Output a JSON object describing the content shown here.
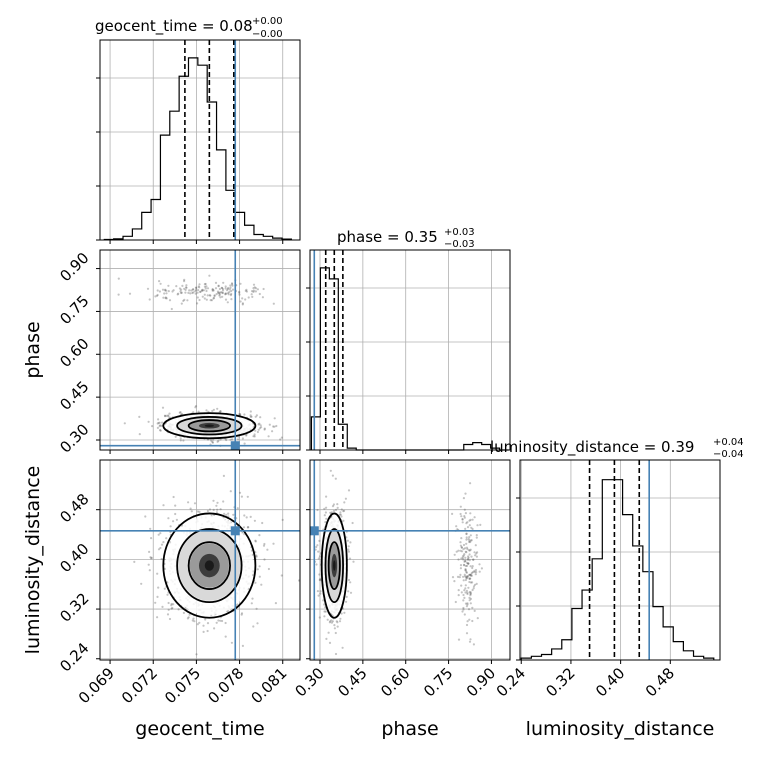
{
  "chart_data": {
    "type": "corner",
    "parameters": [
      "geocent_time",
      "phase",
      "luminosity_distance"
    ],
    "truth": {
      "geocent_time": 0.0777,
      "phase": 0.28,
      "luminosity_distance": 0.446
    },
    "colors": {
      "truth": "#4682b4",
      "hist": "#000000",
      "grid": "#b0b0b0",
      "points": "#555555"
    },
    "axes": {
      "geocent_time": {
        "range": [
          0.0683,
          0.0822
        ],
        "ticks": [
          "0.069",
          "0.072",
          "0.075",
          "0.078",
          "0.081"
        ],
        "tick_values": [
          0.069,
          0.072,
          0.075,
          0.078,
          0.081
        ]
      },
      "phase": {
        "range": [
          0.265,
          0.965
        ],
        "ticks": [
          "0.30",
          "0.45",
          "0.60",
          "0.75",
          "0.90"
        ],
        "tick_values": [
          0.3,
          0.45,
          0.6,
          0.75,
          0.9
        ]
      },
      "luminosity_distance": {
        "range": [
          0.238,
          0.56
        ],
        "ticks": [
          "0.24",
          "0.32",
          "0.40",
          "0.48"
        ],
        "tick_values": [
          0.24,
          0.32,
          0.4,
          0.48
        ]
      }
    },
    "titles": {
      "geocent_time": {
        "label": "geocent_time = 0.08",
        "plus": "+0.00",
        "minus": "−0.00"
      },
      "phase": {
        "label": "phase = 0.35",
        "plus": "+0.03",
        "minus": "−0.03"
      },
      "luminosity_distance": {
        "label": "luminosity_distance = 0.39",
        "plus": "+0.04",
        "minus": "−0.04"
      }
    },
    "quantiles": {
      "geocent_time": [
        0.0742,
        0.0759,
        0.0776
      ],
      "phase": [
        0.32,
        0.35,
        0.38
      ],
      "luminosity_distance": [
        0.35,
        0.39,
        0.43
      ]
    },
    "histograms": {
      "geocent_time": {
        "edges_range": [
          0.0686,
          0.0816
        ],
        "counts": [
          0.003,
          0.006,
          0.02,
          0.06,
          0.15,
          0.22,
          0.57,
          0.7,
          0.89,
          0.99,
          0.95,
          0.75,
          0.49,
          0.27,
          0.15,
          0.08,
          0.03,
          0.02,
          0.01,
          0.005
        ]
      },
      "phase": {
        "edges_range": [
          0.27,
          0.96
        ],
        "counts": [
          0.18,
          0.99,
          0.93,
          0.14,
          0.01,
          0,
          0,
          0,
          0,
          0,
          0,
          0,
          0,
          0,
          0,
          0,
          0,
          0.03,
          0.04,
          0.03,
          0.01,
          0
        ]
      },
      "luminosity_distance": {
        "edges_range": [
          0.24,
          0.55
        ],
        "counts": [
          0.01,
          0.02,
          0.03,
          0.06,
          0.11,
          0.28,
          0.38,
          0.55,
          0.98,
          0.98,
          0.79,
          0.62,
          0.48,
          0.29,
          0.18,
          0.1,
          0.05,
          0.02,
          0.01
        ]
      }
    },
    "samples_2d": [
      {
        "x": "geocent_time",
        "y": "phase",
        "blobs": [
          {
            "cx": 0.0759,
            "cy": 0.35,
            "sx": 0.0016,
            "sy": 0.022,
            "n": 700
          },
          {
            "cx": 0.0759,
            "cy": 0.815,
            "sx": 0.0019,
            "sy": 0.018,
            "n": 180
          }
        ]
      },
      {
        "x": "geocent_time",
        "y": "luminosity_distance",
        "blobs": [
          {
            "cx": 0.0759,
            "cy": 0.39,
            "sx": 0.0016,
            "sy": 0.042,
            "n": 900
          }
        ]
      },
      {
        "x": "phase",
        "y": "luminosity_distance",
        "blobs": [
          {
            "cx": 0.35,
            "cy": 0.39,
            "sx": 0.022,
            "sy": 0.042,
            "n": 700
          },
          {
            "cx": 0.815,
            "cy": 0.39,
            "sx": 0.018,
            "sy": 0.045,
            "n": 200
          }
        ]
      }
    ],
    "grid": true
  }
}
